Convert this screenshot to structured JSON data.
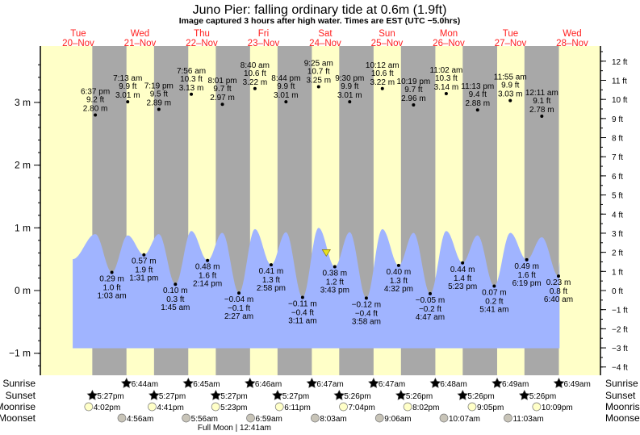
{
  "title": "Juno Pier: falling  ordinary tide at 0.6m (1.9ft)",
  "subtitle": "Image captured 3 hours after high water. Times are EST (UTC −5.0hrs)",
  "colors": {
    "day": "#ffffc8",
    "night": "#a8a8a8",
    "water": "#a0b4ff",
    "day_label": "#ff2020",
    "sunrise": "#b0a830",
    "sunset": "#c05000",
    "moonrise": "#ffffc8",
    "moonset": "#c8c4b8",
    "marker": "#e8e020"
  },
  "days": [
    {
      "dow": "Tue",
      "date": "20–Nov"
    },
    {
      "dow": "Wed",
      "date": "21–Nov"
    },
    {
      "dow": "Thu",
      "date": "22–Nov"
    },
    {
      "dow": "Fri",
      "date": "23–Nov"
    },
    {
      "dow": "Sat",
      "date": "24–Nov"
    },
    {
      "dow": "Sun",
      "date": "25–Nov"
    },
    {
      "dow": "Mon",
      "date": "26–Nov"
    },
    {
      "dow": "Tue",
      "date": "27–Nov"
    },
    {
      "dow": "Wed",
      "date": "28–Nov"
    }
  ],
  "chart_data": {
    "type": "area",
    "left_axis": {
      "unit": "m",
      "ticks": [
        "3 m",
        "2 m",
        "1 m",
        "0 m",
        "−1 m"
      ],
      "values": [
        3,
        2,
        1,
        0,
        -1
      ]
    },
    "right_axis": {
      "unit": "ft",
      "ticks": [
        "12 ft",
        "11 ft",
        "10 ft",
        "9 ft",
        "8 ft",
        "7 ft",
        "6 ft",
        "5 ft",
        "4 ft",
        "3 ft",
        "2 ft",
        "1 ft",
        "0 ft",
        "−1 ft",
        "−2 ft",
        "−3 ft",
        "−4 ft"
      ],
      "values": [
        12,
        11,
        10,
        9,
        8,
        7,
        6,
        5,
        4,
        3,
        2,
        1,
        0,
        -1,
        -2,
        -3,
        -4
      ]
    },
    "ylim_m": [
      -1.25,
      3.9
    ],
    "current": {
      "day": 4,
      "time": "12:25pm",
      "height_m": 0.6
    },
    "curve_start": {
      "day": 0,
      "time": "9:50am",
      "height_m": 0.5
    },
    "curve_end": {
      "day": 8,
      "time": "7:05am",
      "height_m": 0.45
    },
    "tides": [
      {
        "type": "high",
        "day": 0,
        "time": "6:37 pm",
        "m": "2.80 m",
        "ft": "9.2 ft",
        "value_m": 2.8,
        "curve_m": 0.9
      },
      {
        "type": "low",
        "day": 1,
        "time": "1:03 am",
        "m": "0.29 m",
        "ft": "1.0 ft",
        "value_m": 0.29
      },
      {
        "type": "high",
        "day": 1,
        "time": "7:13 am",
        "m": "3.01 m",
        "ft": "9.9 ft",
        "value_m": 3.01,
        "curve_m": 0.88
      },
      {
        "type": "low",
        "day": 1,
        "time": "1:31 pm",
        "m": "0.57 m",
        "ft": "1.9 ft",
        "value_m": 0.57
      },
      {
        "type": "high",
        "day": 1,
        "time": "7:19 pm",
        "m": "2.89 m",
        "ft": "9.5 ft",
        "value_m": 2.89,
        "curve_m": 0.9
      },
      {
        "type": "low",
        "day": 2,
        "time": "1:45 am",
        "m": "0.10 m",
        "ft": "0.3 ft",
        "value_m": 0.1
      },
      {
        "type": "high",
        "day": 2,
        "time": "7:56 am",
        "m": "3.13 m",
        "ft": "10.3 ft",
        "value_m": 3.13,
        "curve_m": 0.95
      },
      {
        "type": "low",
        "day": 2,
        "time": "2:14 pm",
        "m": "0.48 m",
        "ft": "1.6 ft",
        "value_m": 0.48
      },
      {
        "type": "high",
        "day": 2,
        "time": "8:01 pm",
        "m": "2.97 m",
        "ft": "9.7 ft",
        "value_m": 2.97,
        "curve_m": 0.92
      },
      {
        "type": "low",
        "day": 3,
        "time": "2:27 am",
        "m": "−0.04 m",
        "ft": "−0.1 ft",
        "value_m": -0.04
      },
      {
        "type": "high",
        "day": 3,
        "time": "8:40 am",
        "m": "3.22 m",
        "ft": "10.6 ft",
        "value_m": 3.22,
        "curve_m": 0.98
      },
      {
        "type": "low",
        "day": 3,
        "time": "2:58 pm",
        "m": "0.41 m",
        "ft": "1.3 ft",
        "value_m": 0.41
      },
      {
        "type": "high",
        "day": 3,
        "time": "8:44 pm",
        "m": "3.01 m",
        "ft": "9.9 ft",
        "value_m": 3.01,
        "curve_m": 0.93
      },
      {
        "type": "low",
        "day": 4,
        "time": "3:11 am",
        "m": "−0.11 m",
        "ft": "−0.4 ft",
        "value_m": -0.11
      },
      {
        "type": "high",
        "day": 4,
        "time": "9:25 am",
        "m": "3.25 m",
        "ft": "10.7 ft",
        "value_m": 3.25,
        "curve_m": 1.0
      },
      {
        "type": "low",
        "day": 4,
        "time": "3:43 pm",
        "m": "0.38 m",
        "ft": "1.2 ft",
        "value_m": 0.38
      },
      {
        "type": "high",
        "day": 4,
        "time": "9:30 pm",
        "m": "3.01 m",
        "ft": "9.9 ft",
        "value_m": 3.01,
        "curve_m": 0.93
      },
      {
        "type": "low",
        "day": 5,
        "time": "3:58 am",
        "m": "−0.12 m",
        "ft": "−0.4 ft",
        "value_m": -0.12
      },
      {
        "type": "high",
        "day": 5,
        "time": "10:12 am",
        "m": "3.22 m",
        "ft": "10.6 ft",
        "value_m": 3.22,
        "curve_m": 0.98
      },
      {
        "type": "low",
        "day": 5,
        "time": "4:32 pm",
        "m": "0.40 m",
        "ft": "1.3 ft",
        "value_m": 0.4
      },
      {
        "type": "high",
        "day": 5,
        "time": "10:19 pm",
        "m": "2.96 m",
        "ft": "9.7 ft",
        "value_m": 2.96,
        "curve_m": 0.92
      },
      {
        "type": "low",
        "day": 6,
        "time": "4:47 am",
        "m": "−0.05 m",
        "ft": "−0.2 ft",
        "value_m": -0.05
      },
      {
        "type": "high",
        "day": 6,
        "time": "11:02 am",
        "m": "3.14 m",
        "ft": "10.3 ft",
        "value_m": 3.14,
        "curve_m": 0.95
      },
      {
        "type": "low",
        "day": 6,
        "time": "5:23 pm",
        "m": "0.44 m",
        "ft": "1.4 ft",
        "value_m": 0.44
      },
      {
        "type": "high",
        "day": 6,
        "time": "11:13 pm",
        "m": "2.88 m",
        "ft": "9.4 ft",
        "value_m": 2.88,
        "curve_m": 0.88
      },
      {
        "type": "low",
        "day": 7,
        "time": "5:41 am",
        "m": "0.07 m",
        "ft": "0.2 ft",
        "value_m": 0.07
      },
      {
        "type": "high",
        "day": 7,
        "time": "11:55 am",
        "m": "3.03 m",
        "ft": "9.9 ft",
        "value_m": 3.03,
        "curve_m": 0.92
      },
      {
        "type": "low",
        "day": 7,
        "time": "6:19 pm",
        "m": "0.49 m",
        "ft": "1.6 ft",
        "value_m": 0.49
      },
      {
        "type": "high",
        "day": 8,
        "time": "12:11 am",
        "m": "2.78 m",
        "ft": "9.1 ft",
        "value_m": 2.78,
        "curve_m": 0.85
      },
      {
        "type": "low",
        "day": 8,
        "time": "6:40 am",
        "m": "0.23 m",
        "ft": "0.8 ft",
        "value_m": 0.23
      }
    ]
  },
  "rows": {
    "sunrise": "Sunrise",
    "sunset": "Sunset",
    "moonrise": "Moonrise",
    "moonset": "Moonset"
  },
  "sunrise": [
    {
      "day": 1,
      "time": "6:44am"
    },
    {
      "day": 2,
      "time": "6:45am"
    },
    {
      "day": 3,
      "time": "6:46am"
    },
    {
      "day": 4,
      "time": "6:47am"
    },
    {
      "day": 5,
      "time": "6:47am"
    },
    {
      "day": 6,
      "time": "6:48am"
    },
    {
      "day": 7,
      "time": "6:49am"
    },
    {
      "day": 8,
      "time": "6:49am"
    }
  ],
  "sunset": [
    {
      "day": 0,
      "time": "5:27pm"
    },
    {
      "day": 1,
      "time": "5:27pm"
    },
    {
      "day": 2,
      "time": "5:27pm"
    },
    {
      "day": 3,
      "time": "5:27pm"
    },
    {
      "day": 4,
      "time": "5:26pm"
    },
    {
      "day": 5,
      "time": "5:26pm"
    },
    {
      "day": 6,
      "time": "5:26pm"
    },
    {
      "day": 7,
      "time": "5:26pm"
    }
  ],
  "moonrise": [
    {
      "day": 0,
      "time": "4:02pm"
    },
    {
      "day": 1,
      "time": "4:41pm"
    },
    {
      "day": 2,
      "time": "5:23pm"
    },
    {
      "day": 3,
      "time": "6:11pm"
    },
    {
      "day": 4,
      "time": "7:04pm"
    },
    {
      "day": 5,
      "time": "8:02pm"
    },
    {
      "day": 6,
      "time": "9:05pm"
    },
    {
      "day": 7,
      "time": "10:09pm"
    }
  ],
  "moonset": [
    {
      "day": 1,
      "time": "4:56am"
    },
    {
      "day": 2,
      "time": "5:56am"
    },
    {
      "day": 3,
      "time": "6:59am"
    },
    {
      "day": 4,
      "time": "8:03am"
    },
    {
      "day": 5,
      "time": "9:06am"
    },
    {
      "day": 6,
      "time": "10:07am"
    },
    {
      "day": 7,
      "time": "11:03am"
    }
  ],
  "moon_phase": {
    "day": 3,
    "time": "12:41am",
    "label": "Full Moon | 12:41am"
  }
}
